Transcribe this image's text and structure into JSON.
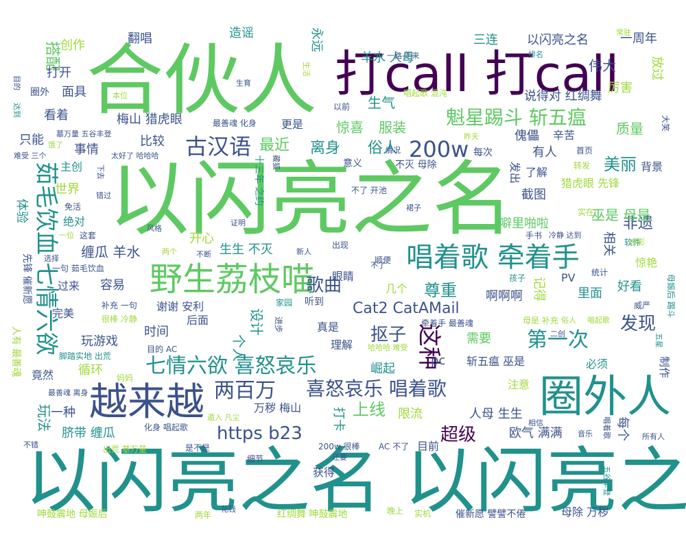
{
  "colors": {
    "background": "#ffffff",
    "palette": [
      "#440154",
      "#3b528b",
      "#21918c",
      "#5ec962",
      "#a0da39",
      "#fde725"
    ]
  },
  "words": [
    {
      "text": "以闪亮之名",
      "color": "#5ec962"
    },
    {
      "text": "以闪亮之名 以闪亮之名",
      "color": "#21918c"
    },
    {
      "text": "合伙人",
      "color": "#5ec962"
    },
    {
      "text": "打call 打call",
      "color": "#440154"
    },
    {
      "text": "圈外人",
      "color": "#21918c"
    },
    {
      "text": "越来越",
      "color": "#3b528b"
    },
    {
      "text": "野生荔枝喵",
      "color": "#5ec962"
    },
    {
      "text": "唱着歌 牵着手",
      "color": "#21918c"
    },
    {
      "text": "茹毛饮血 七情六欲",
      "color": "#21918c"
    },
    {
      "text": "七情六欲 喜怒哀乐",
      "color": "#21918c"
    },
    {
      "text": "喜怒哀乐 唱着歌",
      "color": "#3b528b"
    },
    {
      "text": "魁星踢斗 斩五瘟",
      "color": "#5ec962"
    },
    {
      "text": "古汉语",
      "color": "#3b528b"
    },
    {
      "text": "200w",
      "color": "#3b528b"
    },
    {
      "text": "两百万",
      "color": "#3b528b"
    },
    {
      "text": "https b23",
      "color": "#3b528b"
    },
    {
      "text": "Cat2 CatAMail",
      "color": "#3b528b"
    },
    {
      "text": "第一次",
      "color": "#21918c"
    },
    {
      "text": "这种",
      "color": "#440154"
    },
    {
      "text": "超级",
      "color": "#440154"
    },
    {
      "text": "歌曲",
      "color": "#3b528b"
    },
    {
      "text": "发现",
      "color": "#3b528b"
    },
    {
      "text": "抠子",
      "color": "#3b528b"
    },
    {
      "text": "最近",
      "color": "#5ec962"
    },
    {
      "text": "离身",
      "color": "#21918c"
    },
    {
      "text": "俗人",
      "color": "#21918c"
    },
    {
      "text": "美丽",
      "color": "#21918c"
    },
    {
      "text": "非遗",
      "color": "#3b528b"
    },
    {
      "text": "尊重",
      "color": "#21918c"
    },
    {
      "text": "惊喜",
      "color": "#5ec962"
    },
    {
      "text": "服装",
      "color": "#5ec962"
    },
    {
      "text": "生气",
      "color": "#21918c"
    },
    {
      "text": "质量",
      "color": "#5ec962"
    },
    {
      "text": "伟大",
      "color": "#3b528b"
    },
    {
      "text": "搭配",
      "color": "#5ec962"
    },
    {
      "text": "创作",
      "color": "#a0da39"
    },
    {
      "text": "翻唱",
      "color": "#3b528b"
    },
    {
      "text": "造谣",
      "color": "#21918c"
    },
    {
      "text": "永远",
      "color": "#21918c"
    },
    {
      "text": "三连",
      "color": "#21918c"
    },
    {
      "text": "以闪亮之名",
      "color": "#3b528b"
    },
    {
      "text": "一周年",
      "color": "#3b528b"
    },
    {
      "text": "放过",
      "color": "#a0da39"
    },
    {
      "text": "羊水 人母",
      "color": "#21918c"
    },
    {
      "text": "说得对 红绸舞",
      "color": "#3b528b"
    },
    {
      "text": "厉害",
      "color": "#a0da39"
    },
    {
      "text": "打开",
      "color": "#3b528b"
    },
    {
      "text": "面具",
      "color": "#3b528b"
    },
    {
      "text": "圈外",
      "color": "#3b528b"
    },
    {
      "text": "看着",
      "color": "#3b528b"
    },
    {
      "text": "梅山 猎虎眼",
      "color": "#3b528b"
    },
    {
      "text": "更是",
      "color": "#3b528b"
    },
    {
      "text": "只能",
      "color": "#3b528b"
    },
    {
      "text": "比较",
      "color": "#3b528b"
    },
    {
      "text": "事情",
      "color": "#3b528b"
    },
    {
      "text": "主创",
      "color": "#21918c"
    },
    {
      "text": "世界",
      "color": "#a0da39"
    },
    {
      "text": "体验",
      "color": "#21918c"
    },
    {
      "text": "绝对",
      "color": "#21918c"
    },
    {
      "text": "缠瓜 羊水",
      "color": "#3b528b"
    },
    {
      "text": "开心",
      "color": "#a0da39"
    },
    {
      "text": "生生 不灭",
      "color": "#21918c"
    },
    {
      "text": "有人",
      "color": "#3b528b"
    },
    {
      "text": "背景",
      "color": "#3b528b"
    },
    {
      "text": "截图",
      "color": "#3b528b"
    },
    {
      "text": "巫是 母是",
      "color": "#5ec962"
    },
    {
      "text": "猎虎眼 先锋",
      "color": "#a0da39"
    },
    {
      "text": "噼里啪啦",
      "color": "#5ec962"
    },
    {
      "text": "相关",
      "color": "#3b528b"
    },
    {
      "text": "惊艳",
      "color": "#a0da39"
    },
    {
      "text": "好看",
      "color": "#21918c"
    },
    {
      "text": "里面",
      "color": "#21918c"
    },
    {
      "text": "啊啊啊",
      "color": "#3b528b"
    },
    {
      "text": "谢谢 安利",
      "color": "#3b528b"
    },
    {
      "text": "时间",
      "color": "#3b528b"
    },
    {
      "text": "个人",
      "color": "#21918c"
    },
    {
      "text": "设计",
      "color": "#21918c"
    },
    {
      "text": "真是",
      "color": "#3b528b"
    },
    {
      "text": "眼睛",
      "color": "#3b528b"
    },
    {
      "text": "完美",
      "color": "#3b528b"
    },
    {
      "text": "过来",
      "color": "#3b528b"
    },
    {
      "text": "容易",
      "color": "#3b528b"
    },
    {
      "text": "需要",
      "color": "#5ec962"
    },
    {
      "text": "理解",
      "color": "#3b528b"
    },
    {
      "text": "崛起",
      "color": "#21918c"
    },
    {
      "text": "pc",
      "color": "#3b528b"
    },
    {
      "text": "斩五瘟 巫是",
      "color": "#3b528b"
    },
    {
      "text": "必须",
      "color": "#21918c"
    },
    {
      "text": "制作",
      "color": "#3b528b"
    },
    {
      "text": "玩游戏",
      "color": "#3b528b"
    },
    {
      "text": "循环",
      "color": "#a0da39"
    },
    {
      "text": "竟然",
      "color": "#3b528b"
    },
    {
      "text": "玩法",
      "color": "#21918c"
    },
    {
      "text": "一种",
      "color": "#3b528b"
    },
    {
      "text": "脐带 缠瓜",
      "color": "#21918c"
    },
    {
      "text": "万秽 梅山",
      "color": "#3b528b"
    },
    {
      "text": "打卡",
      "color": "#21918c"
    },
    {
      "text": "上线",
      "color": "#5ec962"
    },
    {
      "text": "限流",
      "color": "#a0da39"
    },
    {
      "text": "人母 生生",
      "color": "#3b528b"
    },
    {
      "text": "欧气 满满",
      "color": "#3b528b"
    },
    {
      "text": "每个",
      "color": "#3b528b"
    },
    {
      "text": "目前",
      "color": "#3b528b"
    },
    {
      "text": "获得",
      "color": "#3b528b"
    },
    {
      "text": "母除 万秽",
      "color": "#3b528b"
    },
    {
      "text": "呻鼓震地 母娠后",
      "color": "#a0da39"
    },
    {
      "text": "红绸舞 呻鼓震地",
      "color": "#a0da39"
    },
    {
      "text": "催新愿 譬譬不倦",
      "color": "#3b528b"
    },
    {
      "text": "出荒 基万量",
      "color": "#a0da39"
    },
    {
      "text": "200w 很棒",
      "color": "#3b528b"
    },
    {
      "text": "一句 茹毛饮血",
      "color": "#3b528b"
    },
    {
      "text": "补充 一句",
      "color": "#3b528b"
    },
    {
      "text": "很棒 冷静",
      "color": "#a0da39"
    },
    {
      "text": "脚踏实地 出荒",
      "color": "#21918c"
    },
    {
      "text": "先锋 催新愿",
      "color": "#3b528b"
    },
    {
      "text": "人有 最善魂",
      "color": "#a0da39"
    },
    {
      "text": "最善魂 化身",
      "color": "#3b528b"
    },
    {
      "text": "墓万量 五谷丰登",
      "color": "#3b528b"
    },
    {
      "text": "太好了 哈哈哈",
      "color": "#3b528b"
    },
    {
      "text": "唱起歌 混沌",
      "color": "#a0da39"
    },
    {
      "text": "以前",
      "color": "#3b528b"
    },
    {
      "text": "一路 走来",
      "color": "#3b528b"
    },
    {
      "text": "生育",
      "color": "#3b528b"
    },
    {
      "text": "生活",
      "color": "#a0da39"
    },
    {
      "text": "本位",
      "color": "#a0da39"
    },
    {
      "text": "目的",
      "color": "#3b528b"
    },
    {
      "text": "达到",
      "color": "#21918c"
    },
    {
      "text": "常驻",
      "color": "#a0da39"
    },
    {
      "text": "排名",
      "color": "#21918c"
    },
    {
      "text": "傀儡",
      "color": "#3b528b"
    },
    {
      "text": "辛苦",
      "color": "#3b528b"
    },
    {
      "text": "了解",
      "color": "#3b528b"
    },
    {
      "text": "发出",
      "color": "#3b528b"
    },
    {
      "text": "首页",
      "color": "#3b528b"
    },
    {
      "text": "转发",
      "color": "#a0da39"
    },
    {
      "text": "实在",
      "color": "#a0da39"
    },
    {
      "text": "统计",
      "color": "#3b528b"
    },
    {
      "text": "PV",
      "color": "#3b528b"
    },
    {
      "text": "孩子",
      "color": "#21918c"
    },
    {
      "text": "手书",
      "color": "#3b528b"
    },
    {
      "text": "冷静 达到",
      "color": "#3b528b"
    },
    {
      "text": "软件",
      "color": "#21918c"
    },
    {
      "text": "合影",
      "color": "#a0da39"
    },
    {
      "text": "大笑",
      "color": "#3b528b"
    },
    {
      "text": "意义",
      "color": "#3b528b"
    },
    {
      "text": "不灭 母除",
      "color": "#3b528b"
    },
    {
      "text": "每次",
      "color": "#3b528b"
    },
    {
      "text": "昨天",
      "color": "#a0da39"
    },
    {
      "text": "情况",
      "color": "#3b528b"
    },
    {
      "text": "藏狐",
      "color": "#3b528b"
    },
    {
      "text": "十三年 之约",
      "color": "#21918c"
    },
    {
      "text": "不了 开池",
      "color": "#3b528b"
    },
    {
      "text": "裙子",
      "color": "#3b528b"
    },
    {
      "text": "出现",
      "color": "#3b528b"
    },
    {
      "text": "新人",
      "color": "#3b528b"
    },
    {
      "text": "不断",
      "color": "#3b528b"
    },
    {
      "text": "顺便",
      "color": "#3b528b"
    },
    {
      "text": "几个",
      "color": "#a0da39"
    },
    {
      "text": "家园",
      "color": "#21918c"
    },
    {
      "text": "听到",
      "color": "#3b528b"
    },
    {
      "text": "后面",
      "color": "#3b528b"
    },
    {
      "text": "进步",
      "color": "#3b528b"
    },
    {
      "text": "目的 AC",
      "color": "#3b528b"
    },
    {
      "text": "哈哈哈 难受",
      "color": "#a0da39"
    },
    {
      "text": "牵着手 最善魂",
      "color": "#3b528b"
    },
    {
      "text": "母是 补充",
      "color": "#a0da39"
    },
    {
      "text": "二创",
      "color": "#3b528b"
    },
    {
      "text": "俗人",
      "color": "#a0da39"
    },
    {
      "text": "唱起歌",
      "color": "#a0da39"
    },
    {
      "text": "威严",
      "color": "#3b528b"
    },
    {
      "text": "五星",
      "color": "#21918c"
    },
    {
      "text": "母娠后 踢斗",
      "color": "#21918c"
    },
    {
      "text": "注意",
      "color": "#a0da39"
    },
    {
      "text": "记得",
      "color": "#a0da39"
    },
    {
      "text": "相信",
      "color": "#3b528b"
    },
    {
      "text": "唱着歌",
      "color": "#3b528b"
    },
    {
      "text": "所有人",
      "color": "#3b528b"
    },
    {
      "text": "五谷丰登",
      "color": "#21918c"
    },
    {
      "text": "音乐",
      "color": "#3b528b"
    },
    {
      "text": "AC 不了",
      "color": "#3b528b"
    },
    {
      "text": "还要",
      "color": "#3b528b"
    },
    {
      "text": "细节",
      "color": "#3b528b"
    },
    {
      "text": "是不是",
      "color": "#3b528b"
    },
    {
      "text": "化身 唱起歌",
      "color": "#3b528b"
    },
    {
      "text": "遁入 凡尘",
      "color": "#a0da39"
    },
    {
      "text": "不错",
      "color": "#3b528b"
    },
    {
      "text": "最善魂 离身",
      "color": "#3b528b"
    },
    {
      "text": "妈妈",
      "color": "#a0da39"
    },
    {
      "text": "两年",
      "color": "#a0da39"
    },
    {
      "text": "花钱",
      "color": "#3b528b"
    },
    {
      "text": "晚上",
      "color": "#a0da39"
    },
    {
      "text": "实机",
      "color": "#a0da39"
    },
    {
      "text": "证明",
      "color": "#3b528b"
    },
    {
      "text": "风格",
      "color": "#3b528b"
    },
    {
      "text": "这套",
      "color": "#3b528b"
    },
    {
      "text": "一位",
      "color": "#a0da39"
    },
    {
      "text": "选择",
      "color": "#3b528b"
    },
    {
      "text": "两个",
      "color": "#a0da39"
    },
    {
      "text": "免活",
      "color": "#3b528b"
    },
    {
      "text": "下去",
      "color": "#3b528b"
    },
    {
      "text": "错过",
      "color": "#3b528b"
    },
    {
      "text": "难受 三个",
      "color": "#3b528b"
    },
    {
      "text": "饿了",
      "color": "#a0da39"
    },
    {
      "text": "不了",
      "color": "#3b528b"
    }
  ]
}
